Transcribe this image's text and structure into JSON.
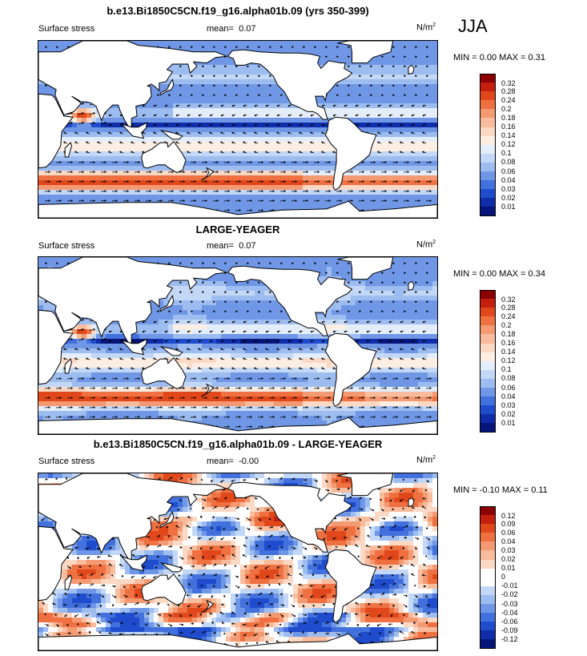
{
  "season": "JJA",
  "panels": [
    {
      "title": "b.e13.Bi1850C5CN.f19_g16.alpha01b.09 (yrs 350-399)",
      "left_label": "Surface stress",
      "mean_label": "mean=",
      "mean_value": "0.07",
      "units": "N/m",
      "units_sup": "2",
      "minmax": "MIN =  0.00 MAX =  0.31",
      "colorbar": {
        "labels": [
          "0.32",
          "0.28",
          "0.24",
          "0.2",
          "0.18",
          "0.16",
          "0.14",
          "0.12",
          "0.1",
          "0.08",
          "0.06",
          "0.04",
          "0.03",
          "0.02",
          "0.01"
        ],
        "colors": [
          "#8b0000",
          "#c41e0f",
          "#e0481c",
          "#ef7040",
          "#f49a72",
          "#f8bb9c",
          "#fbd9c5",
          "#fdeee3",
          "#e4eefb",
          "#c3d8f6",
          "#9dbcef",
          "#6f97e6",
          "#4270dc",
          "#1f4ccd",
          "#0f2da8",
          "#06157a"
        ]
      }
    },
    {
      "title": "LARGE-YEAGER",
      "left_label": "Surface stress",
      "mean_label": "mean=",
      "mean_value": "0.07",
      "units": "N/m",
      "units_sup": "2",
      "minmax": "MIN =  0.00 MAX =  0.34",
      "colorbar": {
        "labels": [
          "0.32",
          "0.28",
          "0.24",
          "0.2",
          "0.18",
          "0.16",
          "0.14",
          "0.12",
          "0.1",
          "0.08",
          "0.06",
          "0.04",
          "0.03",
          "0.02",
          "0.01"
        ],
        "colors": [
          "#8b0000",
          "#c41e0f",
          "#e0481c",
          "#ef7040",
          "#f49a72",
          "#f8bb9c",
          "#fbd9c5",
          "#fdeee3",
          "#e4eefb",
          "#c3d8f6",
          "#9dbcef",
          "#6f97e6",
          "#4270dc",
          "#1f4ccd",
          "#0f2da8",
          "#06157a"
        ]
      }
    },
    {
      "title": "b.e13.Bi1850C5CN.f19_g16.alpha01b.09 - LARGE-YEAGER",
      "left_label": "Surface stress",
      "mean_label": "mean=",
      "mean_value": "-0.00",
      "units": "N/m",
      "units_sup": "2",
      "minmax": "MIN = -0.10 MAX =  0.11",
      "colorbar": {
        "labels": [
          "0.12",
          "0.09",
          "0.06",
          "0.04",
          "0.03",
          "0.02",
          "0.01",
          "0",
          "-0.01",
          "-0.02",
          "-0.03",
          "-0.04",
          "-0.06",
          "-0.09",
          "-0.12"
        ],
        "colors": [
          "#8b0000",
          "#c41e0f",
          "#e0481c",
          "#ef7040",
          "#f49a72",
          "#f8bb9c",
          "#fbd9c5",
          "#ffffff",
          "#ffffff",
          "#c3d8f6",
          "#9dbcef",
          "#6f97e6",
          "#4270dc",
          "#1f4ccd",
          "#0f2da8",
          "#06157a"
        ]
      }
    }
  ]
}
